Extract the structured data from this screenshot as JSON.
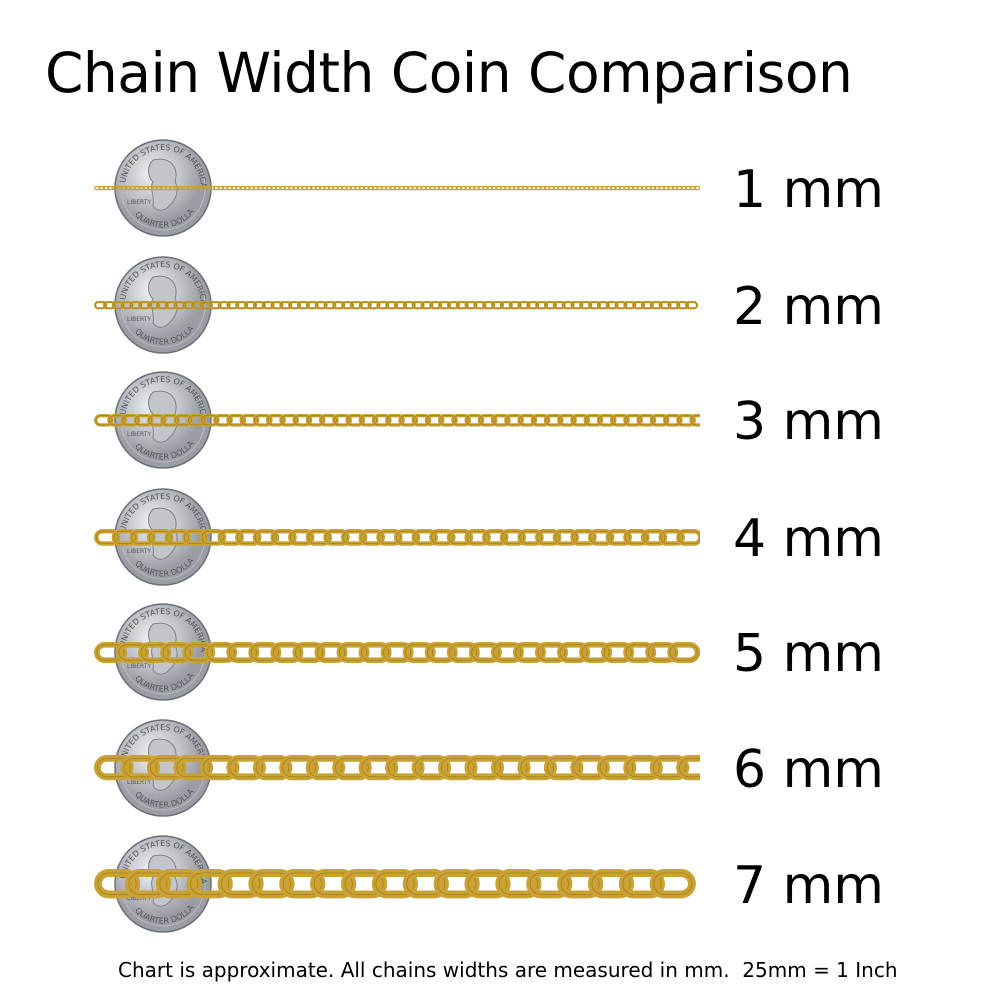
{
  "title": "Chain Width Coin Comparison",
  "coin_lettering": [
    "UNITED STATES OF AMERICA",
    "LIBERTY",
    "IN GOD WE TRUST",
    "QUARTER DOLLAR"
  ],
  "colors": {
    "gold": "#c9a233",
    "gold_dark": "#8a6a14",
    "gold_light": "#f0d77a",
    "coin": "#cfd2d6"
  },
  "chains": [
    {
      "width_mm": 1,
      "label": "1 mm"
    },
    {
      "width_mm": 2,
      "label": "2 mm"
    },
    {
      "width_mm": 3,
      "label": "3 mm"
    },
    {
      "width_mm": 4,
      "label": "4 mm"
    },
    {
      "width_mm": 5,
      "label": "5 mm"
    },
    {
      "width_mm": 6,
      "label": "6 mm"
    },
    {
      "width_mm": 7,
      "label": "7 mm"
    }
  ],
  "footnote": "Chart is approximate. All chains widths are measured in mm.  25mm = 1 Inch"
}
